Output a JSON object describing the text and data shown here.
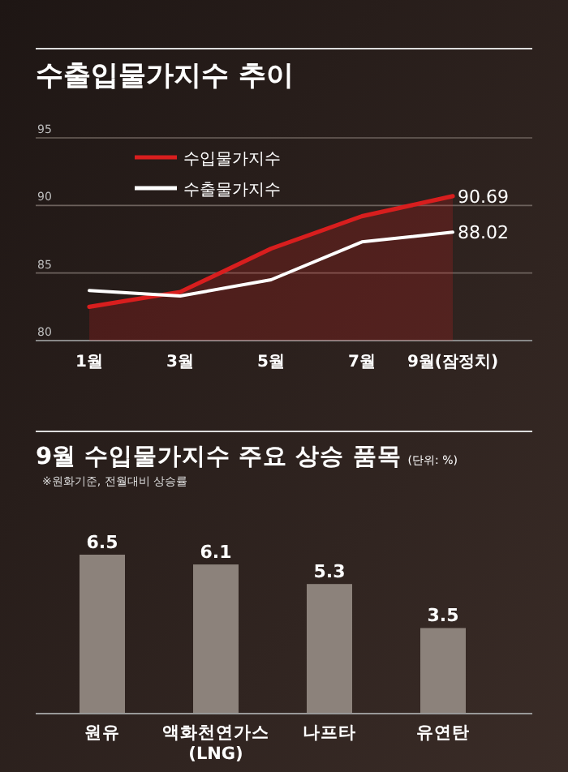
{
  "chart_data": [
    {
      "type": "line",
      "title": "수출입물가지수 추이",
      "categories": [
        "1월",
        "3월",
        "5월",
        "7월",
        "9월(잠정치)"
      ],
      "ylim": [
        80,
        95
      ],
      "yticks": [
        80,
        85,
        90,
        95
      ],
      "grid": "y",
      "legend": "top left",
      "series": [
        {
          "name": "수입물가지수",
          "type": "area",
          "color": "#d81e1e",
          "values": [
            82.5,
            83.6,
            86.8,
            89.2,
            90.69
          ],
          "value_labels": [
            null,
            null,
            null,
            null,
            "90.69"
          ]
        },
        {
          "name": "수출물가지수",
          "type": "line",
          "color": "#ffffff",
          "values": [
            83.7,
            83.3,
            84.5,
            87.3,
            88.02
          ],
          "value_labels": [
            null,
            null,
            null,
            null,
            "88.02"
          ]
        }
      ]
    },
    {
      "type": "bar",
      "title": "9월 수입물가지수 주요 상승 품목",
      "subtitle": "(단위: %)",
      "annotations": [
        "※원화기준, 전월대비 상승률"
      ],
      "categories": [
        "원유",
        "액화천연가스\n(LNG)",
        "나프타",
        "유연탄"
      ],
      "values": [
        6.5,
        6.1,
        5.3,
        3.5
      ],
      "color": "#8c827b",
      "data_labels": true
    }
  ]
}
